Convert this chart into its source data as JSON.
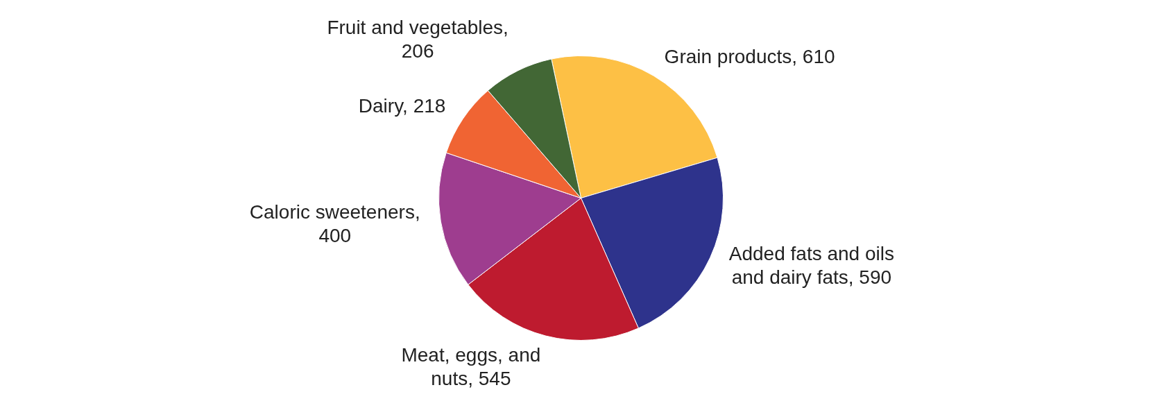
{
  "chart_data": {
    "type": "pie",
    "categories": [
      "Grain products, 610",
      "Added fats and oils and dairy fats, 590",
      "Meat, eggs, and nuts, 545",
      "Caloric sweeteners, 400",
      "Dairy, 218",
      "Fruit and vegetables, 206"
    ],
    "values": [
      610,
      590,
      545,
      400,
      218,
      206
    ],
    "colors": [
      "#fdc045",
      "#2e338c",
      "#be1b2f",
      "#9e3d8f",
      "#f06433",
      "#426735"
    ],
    "legend": false
  }
}
